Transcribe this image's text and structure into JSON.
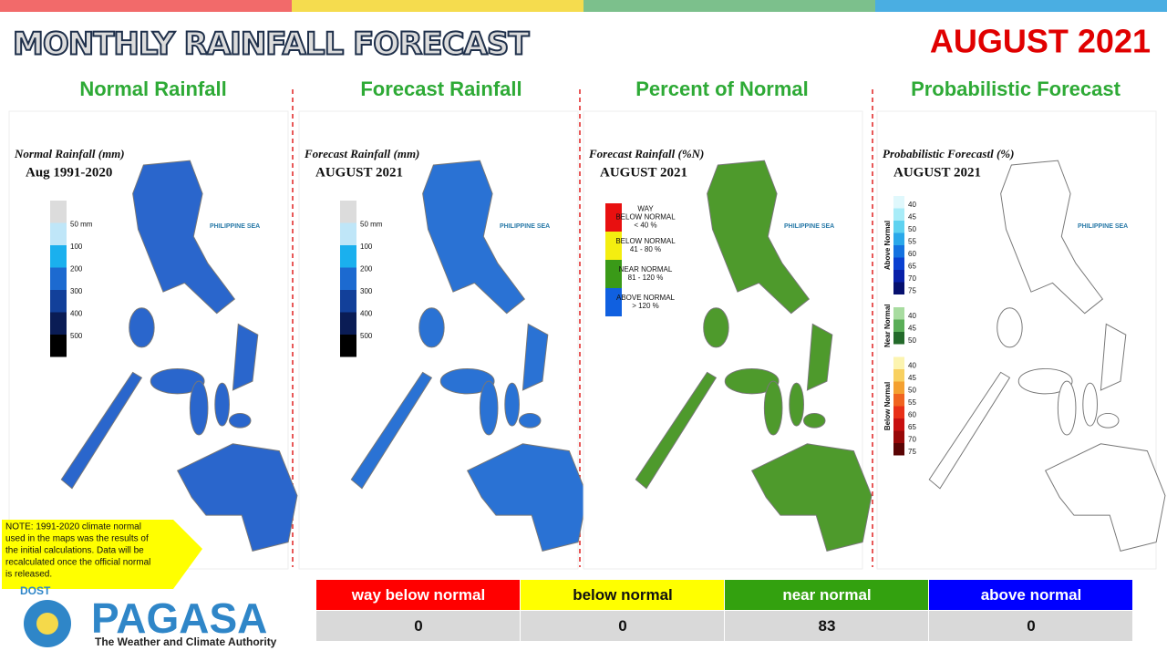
{
  "header": {
    "title": "MONTHLY RAINFALL FORECAST",
    "date": "AUGUST 2021"
  },
  "panels": [
    {
      "title": "Normal Rainfall",
      "map_title": "Normal Rainfall (mm)",
      "map_subtitle": "Aug 1991-2020",
      "legend": {
        "labels": [
          "50 mm",
          "100",
          "200",
          "300",
          "400",
          "500"
        ],
        "colors": [
          "#dcdcdc",
          "#bfe6f8",
          "#1ab0ee",
          "#1c6ad0",
          "#12409a",
          "#0a1c55",
          "#000000"
        ]
      },
      "sea_label": "PHILIPPINE SEA",
      "map_color": "#2a66cc"
    },
    {
      "title": "Forecast Rainfall",
      "map_title": "Forecast Rainfall (mm)",
      "map_subtitle": "AUGUST 2021",
      "legend": {
        "labels": [
          "50 mm",
          "100",
          "200",
          "300",
          "400",
          "500"
        ],
        "colors": [
          "#dcdcdc",
          "#bfe6f8",
          "#1ab0ee",
          "#1c6ad0",
          "#12409a",
          "#0a1c55",
          "#000000"
        ]
      },
      "sea_label": "PHILIPPINE SEA",
      "map_color": "#2a72d4"
    },
    {
      "title": "Percent of Normal",
      "map_title": "Forecast Rainfall (%N)",
      "map_subtitle": "AUGUST 2021",
      "legend": {
        "labels": [
          [
            "WAY",
            "BELOW NORMAL",
            "< 40 %"
          ],
          [
            "BELOW NORMAL",
            "41 - 80 %"
          ],
          [
            "NEAR NORMAL",
            "81 - 120 %"
          ],
          [
            "ABOVE NORMAL",
            "> 120 %"
          ]
        ],
        "colors": [
          "#e81010",
          "#f4ee10",
          "#3a9a18",
          "#1060e0"
        ]
      },
      "sea_label": "PHILIPPINE SEA",
      "map_color": "#4e9a2c"
    },
    {
      "title": "Probabilistic Forecast",
      "map_title": "Probabilistic Forecastl (%)",
      "map_subtitle": "AUGUST 2021",
      "legend": {
        "groups": [
          {
            "name": "Above Normal",
            "labels": [
              "40",
              "45",
              "50",
              "55",
              "60",
              "65",
              "70",
              "75"
            ],
            "colors": [
              "#e0f8fc",
              "#a8ecf8",
              "#5ed2f0",
              "#2aa8ea",
              "#1472e0",
              "#0a40d0",
              "#0820a8",
              "#06106e"
            ]
          },
          {
            "name": "Near Normal",
            "labels": [
              "40",
              "45",
              "50"
            ],
            "colors": [
              "#a8dca0",
              "#5aae58",
              "#236a2a"
            ]
          },
          {
            "name": "Below Normal",
            "labels": [
              "40",
              "45",
              "50",
              "55",
              "60",
              "65",
              "70",
              "75"
            ],
            "colors": [
              "#fcf4b0",
              "#f8d060",
              "#f4a030",
              "#f06420",
              "#e83018",
              "#c81010",
              "#980808",
              "#5a0404"
            ]
          }
        ]
      },
      "sea_label": "PHILIPPINE SEA",
      "map_color": "#ffffff"
    }
  ],
  "table": {
    "headers": [
      "way below normal",
      "below normal",
      "near normal",
      "above normal"
    ],
    "header_colors": [
      "#ff0000",
      "#ffff00",
      "#33a10f",
      "#0000ff"
    ],
    "header_text_colors": [
      "#ffffff",
      "#111111",
      "#ffffff",
      "#ffffff"
    ],
    "values": [
      "0",
      "0",
      "83",
      "0"
    ]
  },
  "note": [
    "NOTE: 1991-2020 climate normal",
    "used in the maps was the results of",
    "the initial calculations. Data will be",
    "recalculated once the official normal",
    "is released."
  ],
  "logo": {
    "agency": "PAGASA",
    "dept": "DOST",
    "tagline": "The Weather and Climate Authority"
  }
}
